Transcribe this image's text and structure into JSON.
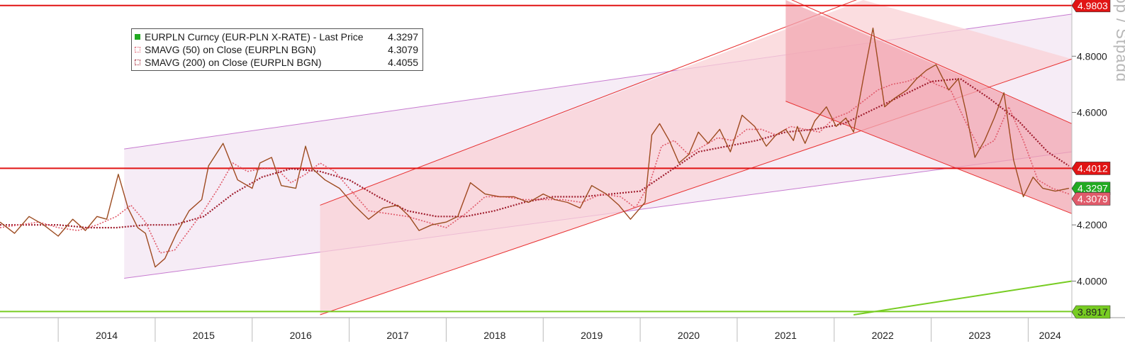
{
  "legend": {
    "rows": [
      {
        "label": "EURPLN Curncy (EUR-PLN X-RATE) - Last Price",
        "value": "4.3297",
        "color": "#22aa22"
      },
      {
        "label": "SMAVG (50)  on Close (EURPLN BGN)",
        "value": "4.3079",
        "color": "#e05a6a"
      },
      {
        "label": "SMAVG (200)  on Close (EURPLN BGN)",
        "value": "4.4055",
        "color": "#a01e2e"
      }
    ]
  },
  "y_axis_label": "Loop / Stpadd",
  "chart_data": {
    "type": "line",
    "title": "",
    "xlabel": "",
    "ylabel": "",
    "ylim": [
      3.87,
      5.0
    ],
    "y_ticks": [
      "4.0000",
      "4.2000",
      "4.4000",
      "4.6000",
      "4.8000"
    ],
    "x_ticks": [
      "2014",
      "2015",
      "2016",
      "2017",
      "2018",
      "2019",
      "2020",
      "2021",
      "2022",
      "2023",
      "2024"
    ],
    "x_tick_years": [
      2014,
      2015,
      2016,
      2017,
      2018,
      2019,
      2020,
      2021,
      2022,
      2023,
      2024
    ],
    "xlim": [
      2013.4,
      2024.45
    ],
    "grid": false,
    "legend_position": "top-left",
    "price_labels": [
      {
        "value": "4.9803",
        "color": "#e11414"
      },
      {
        "value": "4.4012",
        "color": "#e11414"
      },
      {
        "value": "4.3297",
        "color": "#22aa22"
      },
      {
        "value": "4.3079",
        "color": "#e05a6a"
      },
      {
        "value": "3.8917",
        "color": "#77cc22"
      }
    ],
    "horizontal_lines": [
      {
        "y": 4.9803,
        "color": "#e11414"
      },
      {
        "y": 4.4012,
        "color": "#e11414"
      },
      {
        "y": 3.8917,
        "color": "#77cc22"
      }
    ],
    "trend_lines": [
      {
        "x": [
          2022.2,
          2024.45
        ],
        "y": [
          3.88,
          4.0
        ],
        "color": "#77cc22"
      }
    ],
    "channels": [
      {
        "fill": "#f3e6f3",
        "stroke": "#c77bd0",
        "upper": [
          [
            2014.68,
            4.47
          ],
          [
            2024.45,
            4.95
          ]
        ],
        "lower": [
          [
            2014.68,
            4.01
          ],
          [
            2024.45,
            4.46
          ]
        ]
      },
      {
        "fill": "#f9d2d6",
        "stroke": "#e83030",
        "upper": [
          [
            2016.7,
            4.27
          ],
          [
            2022.3,
            5.01
          ]
        ],
        "lower": [
          [
            2016.7,
            3.88
          ],
          [
            2024.45,
            4.79
          ]
        ]
      },
      {
        "fill": "#f2a7b1",
        "stroke": "#e83030",
        "upper": [
          [
            2021.5,
            5.01
          ],
          [
            2024.45,
            4.56
          ]
        ],
        "lower": [
          [
            2021.5,
            4.64
          ],
          [
            2024.45,
            4.24
          ]
        ]
      }
    ],
    "series": [
      {
        "name": "EURPLN Curncy (EUR-PLN X-RATE) - Last Price",
        "color": "#22aa22",
        "x": [
          2013.4,
          2013.55,
          2013.7,
          2013.85,
          2014.0,
          2014.15,
          2014.28,
          2014.4,
          2014.5,
          2014.62,
          2014.72,
          2014.82,
          2014.9,
          2015.0,
          2015.1,
          2015.22,
          2015.35,
          2015.48,
          2015.55,
          2015.7,
          2015.85,
          2016.0,
          2016.08,
          2016.2,
          2016.3,
          2016.45,
          2016.55,
          2016.62,
          2016.75,
          2016.9,
          2017.05,
          2017.2,
          2017.35,
          2017.5,
          2017.62,
          2017.72,
          2017.85,
          2018.0,
          2018.12,
          2018.25,
          2018.4,
          2018.55,
          2018.7,
          2018.85,
          2019.0,
          2019.12,
          2019.25,
          2019.38,
          2019.5,
          2019.65,
          2019.78,
          2019.9,
          2020.05,
          2020.12,
          2020.2,
          2020.3,
          2020.4,
          2020.5,
          2020.6,
          2020.7,
          2020.82,
          2020.93,
          2021.05,
          2021.18,
          2021.3,
          2021.4,
          2021.5,
          2021.58,
          2021.62,
          2021.7,
          2021.8,
          2021.92,
          2022.02,
          2022.12,
          2022.2,
          2022.3,
          2022.4,
          2022.52,
          2022.62,
          2022.75,
          2022.85,
          2022.95,
          2023.05,
          2023.18,
          2023.28,
          2023.36,
          2023.45,
          2023.55,
          2023.65,
          2023.75,
          2023.85,
          2023.95,
          2024.05,
          2024.15,
          2024.28,
          2024.42
        ],
        "y": [
          4.21,
          4.17,
          4.23,
          4.2,
          4.16,
          4.22,
          4.18,
          4.23,
          4.22,
          4.38,
          4.26,
          4.19,
          4.17,
          4.05,
          4.08,
          4.17,
          4.25,
          4.29,
          4.41,
          4.49,
          4.36,
          4.33,
          4.42,
          4.44,
          4.34,
          4.33,
          4.48,
          4.4,
          4.36,
          4.33,
          4.27,
          4.22,
          4.26,
          4.27,
          4.23,
          4.18,
          4.2,
          4.21,
          4.23,
          4.35,
          4.31,
          4.3,
          4.3,
          4.28,
          4.31,
          4.29,
          4.28,
          4.26,
          4.34,
          4.31,
          4.27,
          4.22,
          4.28,
          4.52,
          4.56,
          4.5,
          4.42,
          4.45,
          4.53,
          4.49,
          4.54,
          4.46,
          4.59,
          4.55,
          4.48,
          4.52,
          4.54,
          4.5,
          4.55,
          4.49,
          4.57,
          4.62,
          4.55,
          4.58,
          4.53,
          4.72,
          4.9,
          4.62,
          4.65,
          4.68,
          4.72,
          4.75,
          4.77,
          4.68,
          4.72,
          4.6,
          4.44,
          4.5,
          4.58,
          4.67,
          4.43,
          4.3,
          4.37,
          4.33,
          4.32,
          4.33
        ]
      },
      {
        "name": "SMAVG (50)  on Close (EURPLN BGN)",
        "color": "#e05a6a",
        "x": [
          2013.4,
          2013.6,
          2013.8,
          2014.0,
          2014.2,
          2014.4,
          2014.6,
          2014.75,
          2014.9,
          2015.05,
          2015.2,
          2015.35,
          2015.5,
          2015.65,
          2015.8,
          2015.95,
          2016.1,
          2016.25,
          2016.4,
          2016.55,
          2016.7,
          2016.85,
          2017.0,
          2017.2,
          2017.4,
          2017.6,
          2017.8,
          2018.0,
          2018.2,
          2018.4,
          2018.6,
          2018.8,
          2019.0,
          2019.2,
          2019.4,
          2019.6,
          2019.8,
          2019.95,
          2020.1,
          2020.22,
          2020.35,
          2020.5,
          2020.65,
          2020.8,
          2020.95,
          2021.1,
          2021.25,
          2021.4,
          2021.55,
          2021.7,
          2021.85,
          2022.0,
          2022.15,
          2022.3,
          2022.45,
          2022.6,
          2022.75,
          2022.9,
          2023.05,
          2023.2,
          2023.35,
          2023.5,
          2023.65,
          2023.8,
          2023.95,
          2024.1,
          2024.25,
          2024.42
        ],
        "y": [
          4.19,
          4.2,
          4.21,
          4.19,
          4.18,
          4.2,
          4.23,
          4.27,
          4.21,
          4.1,
          4.11,
          4.18,
          4.25,
          4.33,
          4.42,
          4.39,
          4.4,
          4.4,
          4.35,
          4.38,
          4.42,
          4.39,
          4.33,
          4.25,
          4.24,
          4.23,
          4.21,
          4.19,
          4.24,
          4.3,
          4.3,
          4.29,
          4.29,
          4.29,
          4.28,
          4.31,
          4.3,
          4.26,
          4.35,
          4.48,
          4.5,
          4.45,
          4.48,
          4.51,
          4.5,
          4.54,
          4.54,
          4.52,
          4.55,
          4.54,
          4.53,
          4.58,
          4.6,
          4.64,
          4.68,
          4.7,
          4.71,
          4.73,
          4.7,
          4.68,
          4.57,
          4.47,
          4.5,
          4.62,
          4.5,
          4.36,
          4.33,
          4.31
        ]
      },
      {
        "name": "SMAVG (200)  on Close (EURPLN BGN)",
        "color": "#a01e2e",
        "x": [
          2013.4,
          2013.7,
          2014.0,
          2014.3,
          2014.6,
          2014.9,
          2015.2,
          2015.5,
          2015.8,
          2016.1,
          2016.4,
          2016.7,
          2017.0,
          2017.3,
          2017.6,
          2017.9,
          2018.2,
          2018.5,
          2018.8,
          2019.1,
          2019.4,
          2019.7,
          2020.0,
          2020.3,
          2020.6,
          2020.9,
          2021.2,
          2021.5,
          2021.8,
          2022.1,
          2022.4,
          2022.7,
          2023.0,
          2023.3,
          2023.6,
          2023.9,
          2024.2,
          2024.42
        ],
        "y": [
          4.2,
          4.2,
          4.2,
          4.19,
          4.19,
          4.2,
          4.2,
          4.23,
          4.31,
          4.37,
          4.4,
          4.39,
          4.36,
          4.3,
          4.25,
          4.23,
          4.23,
          4.25,
          4.28,
          4.3,
          4.3,
          4.31,
          4.32,
          4.39,
          4.46,
          4.48,
          4.5,
          4.53,
          4.54,
          4.56,
          4.61,
          4.66,
          4.71,
          4.72,
          4.65,
          4.57,
          4.46,
          4.41
        ]
      }
    ]
  }
}
